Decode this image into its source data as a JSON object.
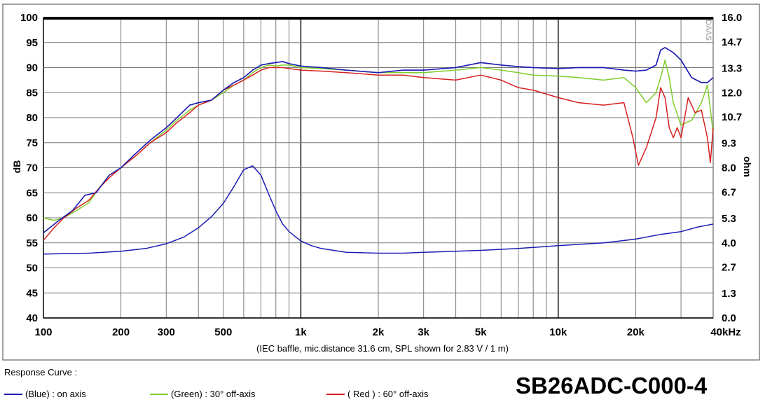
{
  "chart_data": {
    "type": "line",
    "x_scale": "log",
    "x_ticks": [
      100,
      200,
      300,
      500,
      1000,
      2000,
      3000,
      5000,
      10000,
      20000,
      40000
    ],
    "x_tick_labels": [
      "100",
      "200",
      "300",
      "500",
      "1k",
      "2k",
      "3k",
      "5k",
      "10k",
      "20k",
      "40kHz"
    ],
    "xlim": [
      100,
      40000
    ],
    "ylim": [
      40,
      100
    ],
    "y_ticks": [
      40,
      45,
      50,
      55,
      60,
      65,
      70,
      75,
      80,
      85,
      90,
      95,
      100
    ],
    "y_tick_labels": [
      "40",
      "45",
      "50",
      "55",
      "60",
      "65",
      "70",
      "75",
      "80",
      "85",
      "90",
      "95",
      "100"
    ],
    "ylabel": "dB",
    "y2lim": [
      0,
      16
    ],
    "y2_ticks": [
      0,
      1.3,
      2.7,
      4.0,
      5.3,
      6.7,
      8.0,
      9.3,
      10.7,
      12.0,
      13.3,
      14.7,
      16.0
    ],
    "y2_tick_labels": [
      "0.0",
      "1.3",
      "2.7",
      "4.0",
      "5.3",
      "6.7",
      "8.0",
      "9.3",
      "10.7",
      "12.0",
      "13.3",
      "14.7",
      "16.0"
    ],
    "y2label": "ohm",
    "grid": true,
    "annotation": "(IEC baffle, mic.distance 31.6 cm, SPL shown for 2.83 V / 1 m)",
    "watermark": "DAAS",
    "series": [
      {
        "name": "(Blue)  : on axis",
        "color": "#1c1cb4",
        "axis": "left",
        "x": [
          100,
          115,
          130,
          145,
          160,
          180,
          200,
          230,
          260,
          300,
          330,
          370,
          400,
          450,
          500,
          550,
          600,
          650,
          700,
          750,
          800,
          850,
          900,
          1000,
          1200,
          1500,
          2000,
          2500,
          3000,
          4000,
          5000,
          6000,
          7000,
          8000,
          10000,
          12000,
          15000,
          18000,
          20000,
          22000,
          24000,
          25000,
          26000,
          28000,
          30000,
          33000,
          36000,
          38000,
          40000
        ],
        "y": [
          57.0,
          59.5,
          61.5,
          64.5,
          65.0,
          68.5,
          70.0,
          73.0,
          75.5,
          78.0,
          80.0,
          82.5,
          83.0,
          83.5,
          85.5,
          87.0,
          88.0,
          89.5,
          90.5,
          90.8,
          91.0,
          91.2,
          90.8,
          90.3,
          90.0,
          89.5,
          89.0,
          89.5,
          89.5,
          90.0,
          91.0,
          90.5,
          90.2,
          90.0,
          89.8,
          90.0,
          90.0,
          89.5,
          89.3,
          89.5,
          90.5,
          93.5,
          94.0,
          93.0,
          91.5,
          88.0,
          87.0,
          87.0,
          88.0
        ]
      },
      {
        "name": "(Green) : 30° off-axis",
        "color": "#7fcc2a",
        "axis": "left",
        "x": [
          100,
          110,
          120,
          135,
          150,
          165,
          180,
          200,
          230,
          260,
          300,
          330,
          370,
          400,
          450,
          500,
          550,
          600,
          650,
          700,
          750,
          800,
          850,
          900,
          1000,
          1200,
          1500,
          2000,
          2500,
          3000,
          4000,
          5000,
          6000,
          7000,
          8000,
          10000,
          12000,
          15000,
          18000,
          20000,
          22000,
          24000,
          25000,
          26000,
          27000,
          28000,
          30000,
          33000,
          36000,
          38000,
          40000
        ],
        "y": [
          60.0,
          59.5,
          60.0,
          61.5,
          63.0,
          66.0,
          68.5,
          70.0,
          72.5,
          75.0,
          77.5,
          79.5,
          81.5,
          82.5,
          83.5,
          85.0,
          86.5,
          87.5,
          89.0,
          90.0,
          90.5,
          90.3,
          90.5,
          90.5,
          90.0,
          89.8,
          89.5,
          89.0,
          89.0,
          89.0,
          89.5,
          90.0,
          89.5,
          89.0,
          88.5,
          88.3,
          88.0,
          87.5,
          88.0,
          86.0,
          83.0,
          85.0,
          88.0,
          91.5,
          88.0,
          83.0,
          78.5,
          79.5,
          83.0,
          86.5,
          77.0
        ]
      },
      {
        "name": "( Red ) : 60° off-axis",
        "color": "#d62020",
        "axis": "left",
        "x": [
          100,
          110,
          120,
          135,
          150,
          165,
          180,
          200,
          230,
          260,
          300,
          330,
          370,
          400,
          450,
          500,
          550,
          600,
          650,
          700,
          750,
          800,
          850,
          900,
          1000,
          1200,
          1500,
          2000,
          2500,
          3000,
          4000,
          5000,
          6000,
          7000,
          8000,
          10000,
          12000,
          15000,
          18000,
          19500,
          20500,
          22000,
          24000,
          25000,
          26000,
          27000,
          28000,
          29000,
          30000,
          31000,
          32000,
          34000,
          36000,
          38000,
          39000,
          40000
        ],
        "y": [
          55.5,
          58.0,
          60.0,
          62.0,
          63.5,
          66.0,
          68.0,
          70.0,
          72.5,
          75.0,
          77.0,
          79.0,
          81.0,
          82.5,
          83.5,
          85.5,
          86.5,
          87.5,
          88.5,
          89.5,
          90.0,
          90.0,
          90.0,
          89.8,
          89.5,
          89.3,
          89.0,
          88.5,
          88.5,
          88.0,
          87.5,
          88.5,
          87.5,
          86.0,
          85.5,
          84.0,
          83.0,
          82.5,
          83.0,
          76.0,
          70.5,
          74.0,
          80.0,
          86.0,
          84.0,
          78.0,
          76.0,
          78.0,
          76.0,
          80.0,
          84.0,
          81.0,
          81.5,
          76.0,
          71.0,
          78.0
        ]
      },
      {
        "name": "Impedance",
        "color": "#1c1cb4",
        "axis": "right",
        "x": [
          100,
          150,
          200,
          250,
          300,
          350,
          400,
          450,
          500,
          550,
          600,
          650,
          700,
          750,
          800,
          850,
          900,
          1000,
          1100,
          1200,
          1500,
          2000,
          2500,
          3000,
          4000,
          5000,
          7000,
          10000,
          15000,
          20000,
          25000,
          30000,
          35000,
          40000
        ],
        "y": [
          3.4,
          3.45,
          3.55,
          3.7,
          3.95,
          4.3,
          4.8,
          5.4,
          6.1,
          7.0,
          7.9,
          8.1,
          7.6,
          6.6,
          5.7,
          5.0,
          4.6,
          4.1,
          3.85,
          3.7,
          3.5,
          3.45,
          3.45,
          3.5,
          3.55,
          3.6,
          3.7,
          3.85,
          4.0,
          4.2,
          4.45,
          4.6,
          4.85,
          5.0
        ]
      }
    ]
  },
  "footer": {
    "title": "Response Curve :",
    "model": "SB26ADC-C000-4"
  }
}
